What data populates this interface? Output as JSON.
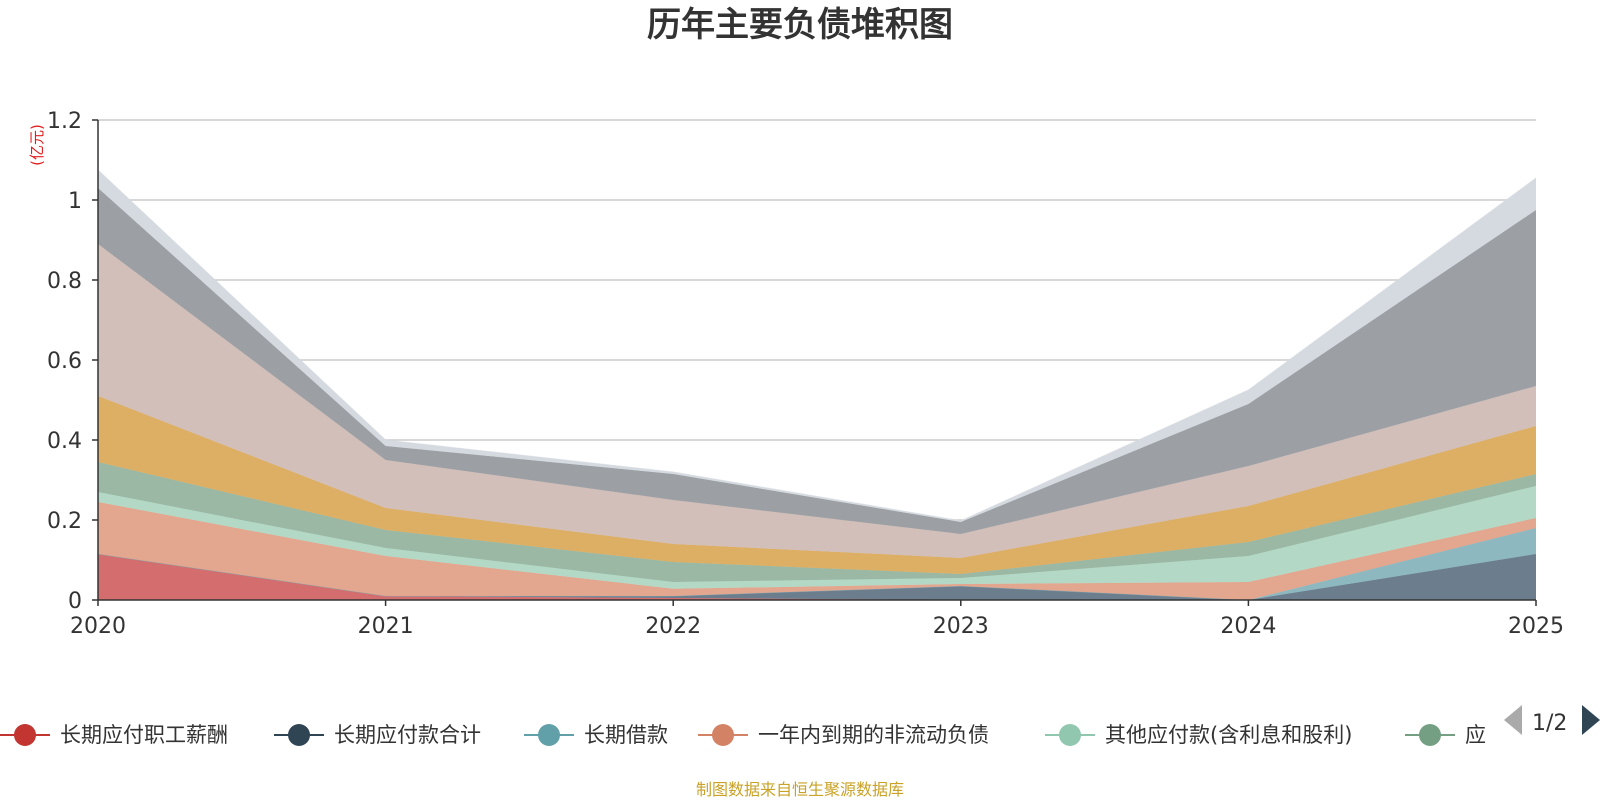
{
  "chart_data": {
    "type": "area",
    "stacked": true,
    "title": "历年主要负债堆积图",
    "unit_label": "(亿元)",
    "x": [
      "2020",
      "2021",
      "2022",
      "2023",
      "2024",
      "2025"
    ],
    "ylim": [
      0,
      1.2
    ],
    "yticks": [
      "0",
      "0.2",
      "0.4",
      "0.6",
      "0.8",
      "1",
      "1.2"
    ],
    "grid": true,
    "series": [
      {
        "name": "长期应付职工薪酬",
        "color": "#d36b6b",
        "values": [
          0.115,
          0.01,
          0.005,
          0.0,
          0.0,
          0.0
        ]
      },
      {
        "name": "长期应付款合计",
        "color": "#697b8c",
        "values": [
          0.0,
          0.0,
          0.005,
          0.035,
          0.0,
          0.115
        ]
      },
      {
        "name": "长期借款",
        "color": "#8cb7bf",
        "values": [
          0.0,
          0.0,
          0.0,
          0.0,
          0.0,
          0.065
        ]
      },
      {
        "name": "一年内到期的非流动负债",
        "color": "#e2a48c",
        "values": [
          0.13,
          0.1,
          0.018,
          0.005,
          0.045,
          0.025
        ]
      },
      {
        "name": "其他应付款(含利息和股利)",
        "color": "#b1d8c5",
        "values": [
          0.025,
          0.02,
          0.017,
          0.015,
          0.065,
          0.08
        ]
      },
      {
        "name": "",
        "color": "#99b7a2",
        "values": [
          0.075,
          0.045,
          0.05,
          0.01,
          0.035,
          0.03
        ]
      },
      {
        "name": "",
        "color": "#dcad62",
        "values": [
          0.165,
          0.055,
          0.045,
          0.04,
          0.09,
          0.12
        ]
      },
      {
        "name": "",
        "color": "#d1beb8",
        "values": [
          0.38,
          0.12,
          0.11,
          0.06,
          0.1,
          0.1
        ]
      },
      {
        "name": "",
        "color": "#9a9ea3",
        "values": [
          0.14,
          0.035,
          0.065,
          0.03,
          0.155,
          0.44
        ]
      },
      {
        "name": "",
        "color": "#d3d9df",
        "values": [
          0.045,
          0.015,
          0.005,
          0.003,
          0.035,
          0.08
        ]
      }
    ],
    "legend_placement": "bottom"
  },
  "legend": {
    "items": [
      {
        "label": "长期应付职工薪酬",
        "color": "#c23531"
      },
      {
        "label": "长期应付款合计",
        "color": "#2f4554"
      },
      {
        "label": "长期借款",
        "color": "#61a0a8"
      },
      {
        "label": "一年内到期的非流动负债",
        "color": "#d48265"
      },
      {
        "label": "其他应付款(含利息和股利)",
        "color": "#91c7ae"
      },
      {
        "label": "应",
        "color": "#749f83"
      }
    ],
    "page_text": "1/2"
  },
  "source_text": "制图数据来自恒生聚源数据库"
}
